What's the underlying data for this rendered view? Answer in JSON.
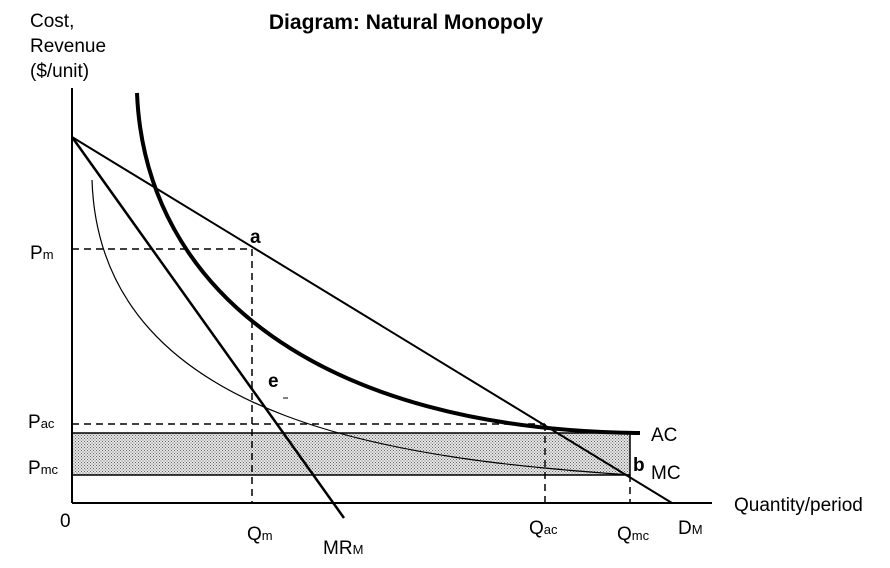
{
  "title": "Diagram: Natural Monopoly",
  "y_axis": {
    "line1": "Cost,",
    "line2": "Revenue",
    "line3": "($/unit)"
  },
  "x_axis": {
    "label": "Quantity/period",
    "origin": "0"
  },
  "y_ticks": {
    "pm": {
      "base": "P",
      "sub": "m"
    },
    "pac": {
      "base": "P",
      "sub": "ac"
    },
    "pmc": {
      "base": "P",
      "sub": "mc"
    }
  },
  "x_ticks": {
    "qm": {
      "base": "Q",
      "sub": "m"
    },
    "qac": {
      "base": "Q",
      "sub": "ac"
    },
    "qmc": {
      "base": "Q",
      "sub": "mc"
    }
  },
  "curves": {
    "demand": {
      "base": "D",
      "sub": "M"
    },
    "mr": {
      "base": "MR",
      "sub": "M"
    },
    "ac": "AC",
    "mc": "MC"
  },
  "points": {
    "a": "a",
    "e": "e",
    "b": "b"
  },
  "colors": {
    "line": "#000000",
    "shade": "#d9d9d9"
  }
}
